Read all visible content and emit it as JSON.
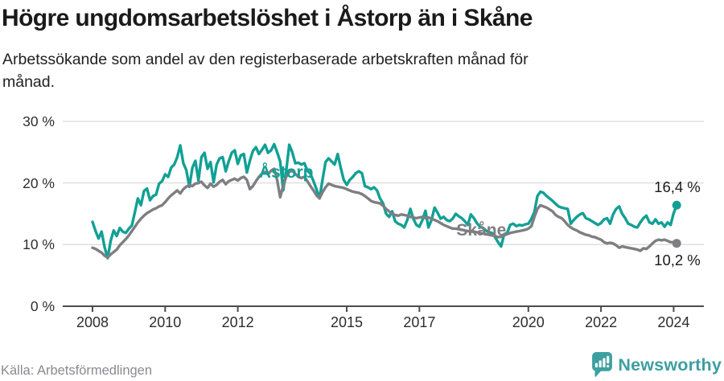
{
  "header": {
    "title": "Högre ungdomsarbetslöshet i Åstorp än i Skåne",
    "subtitle": "Arbetssökande som andel av den registerbaserade arbetskraften månad för\nmånad."
  },
  "footer": {
    "source": "Källa: Arbetsförmedlingen",
    "brand": "Newsworthy",
    "brand_icon": "newsworthy-speech-bubble-bar-chart-icon"
  },
  "colors": {
    "accent_teal": "#12a095",
    "series_gray": "#7e7e83",
    "grid": "#dcdcdc",
    "axis": "#4c4c4c",
    "title_text": "#1a1a1a",
    "body_text": "#212121",
    "tick_text": "#2e2e2e",
    "muted_text": "#8a8a90",
    "logo_teal": "#3d9fa0",
    "background": "#ffffff"
  },
  "chart_data": {
    "type": "line",
    "title": "Högre ungdomsarbetslöshet i Åstorp än i Skåne",
    "subtitle": "Arbetssökande som andel av den registerbaserade arbetskraften månad för månad.",
    "unit": "%",
    "frequency": "monthly",
    "x_start": "2008-01",
    "x_end": "2024-02",
    "ylim": [
      0,
      30
    ],
    "grid": true,
    "legend_position": "inline-labels",
    "y_ticks": [
      {
        "value": 0,
        "label": "0 %"
      },
      {
        "value": 10,
        "label": "10 %"
      },
      {
        "value": 20,
        "label": "20 %"
      },
      {
        "value": 30,
        "label": "30 %"
      }
    ],
    "x_ticks": [
      {
        "value": 2008,
        "label": "2008"
      },
      {
        "value": 2010,
        "label": "2010"
      },
      {
        "value": 2012,
        "label": "2012"
      },
      {
        "value": 2015,
        "label": "2015"
      },
      {
        "value": 2017,
        "label": "2017"
      },
      {
        "value": 2020,
        "label": "2020"
      },
      {
        "value": 2022,
        "label": "2022"
      },
      {
        "value": 2024,
        "label": "2024"
      }
    ],
    "series": [
      {
        "name": "Åstorp",
        "color": "#12a095",
        "end_label": "16,4 %",
        "end_value": 16.4,
        "label_anchor": {
          "x": 2012.58,
          "y": 23.2
        },
        "values": [
          13.7,
          12.2,
          11.0,
          12.1,
          9.6,
          7.8,
          10.6,
          12.3,
          11.4,
          12.7,
          12.1,
          11.9,
          12.6,
          13.1,
          15.3,
          17.5,
          16.4,
          18.7,
          19.1,
          17.2,
          17.9,
          18.1,
          19.9,
          20.3,
          21.4,
          21.0,
          22.5,
          23.0,
          24.2,
          26.1,
          23.2,
          22.1,
          19.4,
          22.5,
          23.6,
          20.4,
          24.2,
          24.9,
          22.3,
          23.4,
          20.1,
          23.0,
          24.0,
          24.2,
          21.9,
          23.5,
          24.9,
          25.3,
          23.1,
          24.5,
          24.7,
          21.7,
          23.6,
          25.2,
          25.8,
          24.7,
          25.4,
          26.2,
          24.9,
          25.3,
          26.3,
          25.0,
          23.5,
          18.8,
          22.0,
          26.2,
          25.0,
          23.2,
          23.3,
          23.0,
          23.2,
          22.0,
          21.5,
          20.3,
          19.0,
          17.5,
          20.5,
          23.4,
          24.0,
          23.5,
          23.0,
          24.7,
          22.5,
          20.5,
          19.7,
          20.5,
          21.0,
          21.6,
          21.9,
          21.6,
          19.5,
          19.3,
          19.0,
          19.3,
          18.8,
          17.5,
          16.7,
          15.0,
          14.5,
          15.4,
          13.8,
          13.4,
          13.2,
          12.8,
          14.0,
          15.8,
          14.2,
          13.2,
          12.9,
          14.0,
          15.5,
          12.8,
          14.0,
          16.0,
          15.2,
          14.2,
          14.5,
          14.0,
          13.8,
          14.2,
          15.0,
          14.6,
          14.3,
          13.8,
          13.2,
          14.9,
          14.3,
          13.5,
          12.9,
          12.7,
          12.3,
          12.0,
          11.9,
          11.2,
          10.4,
          9.7,
          11.7,
          11.9,
          13.2,
          13.4,
          13.0,
          13.2,
          13.1,
          13.3,
          13.4,
          14.2,
          15.3,
          17.9,
          18.6,
          18.4,
          17.9,
          17.5,
          17.1,
          16.6,
          16.2,
          16.0,
          15.9,
          15.8,
          13.4,
          14.0,
          14.5,
          14.9,
          15.1,
          14.3,
          14.1,
          13.8,
          13.5,
          13.2,
          13.5,
          14.1,
          14.3,
          13.4,
          14.9,
          15.8,
          16.2,
          15.0,
          14.3,
          13.4,
          13.2,
          12.9,
          12.8,
          13.6,
          14.3,
          14.7,
          13.6,
          13.4,
          14.1,
          13.4,
          13.6,
          12.9,
          13.6,
          13.2,
          15.1,
          16.4
        ]
      },
      {
        "name": "Skåne",
        "color": "#7e7e83",
        "end_label": "10,2 %",
        "end_value": 10.2,
        "label_anchor": {
          "x": 2018.02,
          "y": 13.8
        },
        "values": [
          9.5,
          9.3,
          9.0,
          8.7,
          8.2,
          7.9,
          8.4,
          8.8,
          9.2,
          9.9,
          10.4,
          10.9,
          11.5,
          12.2,
          12.9,
          13.6,
          14.2,
          14.7,
          15.1,
          15.4,
          15.7,
          15.9,
          16.2,
          16.4,
          16.9,
          17.5,
          18.0,
          18.4,
          18.8,
          18.3,
          19.0,
          19.4,
          19.7,
          19.5,
          19.9,
          20.0,
          20.2,
          19.6,
          19.2,
          19.9,
          19.4,
          19.7,
          20.2,
          20.5,
          19.8,
          20.3,
          20.5,
          20.7,
          20.4,
          20.8,
          21.0,
          20.5,
          19.0,
          19.5,
          20.3,
          21.0,
          21.5,
          21.8,
          21.4,
          22.0,
          22.3,
          20.5,
          17.7,
          19.5,
          21.0,
          21.8,
          22.0,
          21.5,
          21.0,
          20.8,
          21.0,
          20.3,
          19.5,
          18.8,
          18.0,
          17.5,
          18.5,
          19.3,
          19.9,
          19.7,
          19.5,
          19.4,
          19.3,
          19.2,
          19.0,
          18.8,
          18.6,
          18.5,
          18.4,
          18.2,
          17.9,
          17.5,
          17.1,
          16.9,
          16.8,
          16.7,
          16.3,
          15.8,
          15.4,
          15.0,
          14.8,
          14.7,
          14.9,
          14.8,
          14.7,
          14.5,
          14.4,
          14.3,
          14.4,
          14.5,
          14.3,
          14.4,
          14.2,
          14.0,
          13.8,
          13.5,
          13.2,
          13.0,
          12.8,
          12.6,
          12.6,
          12.5,
          12.4,
          12.3,
          12.2,
          12.1,
          12.1,
          12.0,
          11.9,
          11.8,
          11.7,
          11.6,
          11.5,
          11.4,
          11.2,
          11.3,
          11.5,
          11.7,
          11.9,
          12.0,
          12.1,
          12.2,
          12.3,
          12.4,
          12.6,
          13.0,
          14.5,
          15.8,
          16.4,
          16.2,
          16.0,
          15.7,
          15.4,
          14.8,
          14.5,
          14.3,
          13.8,
          13.2,
          12.8,
          12.5,
          12.3,
          12.0,
          11.8,
          11.6,
          11.5,
          11.3,
          11.2,
          11.0,
          10.8,
          10.4,
          10.2,
          10.3,
          10.2,
          9.9,
          9.5,
          9.7,
          9.6,
          9.5,
          9.4,
          9.3,
          9.2,
          9.0,
          9.4,
          9.3,
          9.7,
          10.2,
          10.6,
          10.8,
          10.7,
          10.8,
          10.6,
          10.4,
          10.4,
          10.2
        ]
      }
    ]
  }
}
